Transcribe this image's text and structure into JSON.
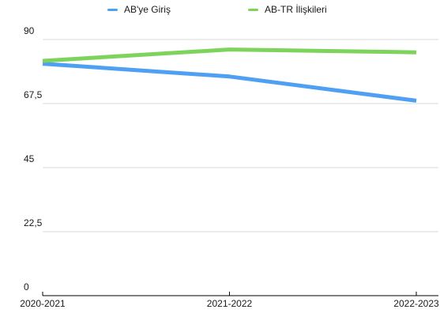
{
  "chart_data": {
    "type": "line",
    "categories": [
      "2020-2021",
      "2021-2022",
      "2022-2023"
    ],
    "series": [
      {
        "name": "AB'ye Giriş",
        "values": [
          81.5,
          77,
          68.5
        ],
        "color": "#4f9ff2"
      },
      {
        "name": "AB-TR İlişkileri",
        "values": [
          82.5,
          86.5,
          85.5
        ],
        "color": "#7ed35c"
      }
    ],
    "y_ticks": [
      0,
      22.5,
      45,
      67.5,
      90
    ],
    "y_tick_labels": [
      "0",
      "22,5",
      "45",
      "67,5",
      "90"
    ],
    "ylim": [
      0,
      90
    ],
    "grid": true,
    "legend_position": "top",
    "title": "",
    "xlabel": "",
    "ylabel": ""
  }
}
